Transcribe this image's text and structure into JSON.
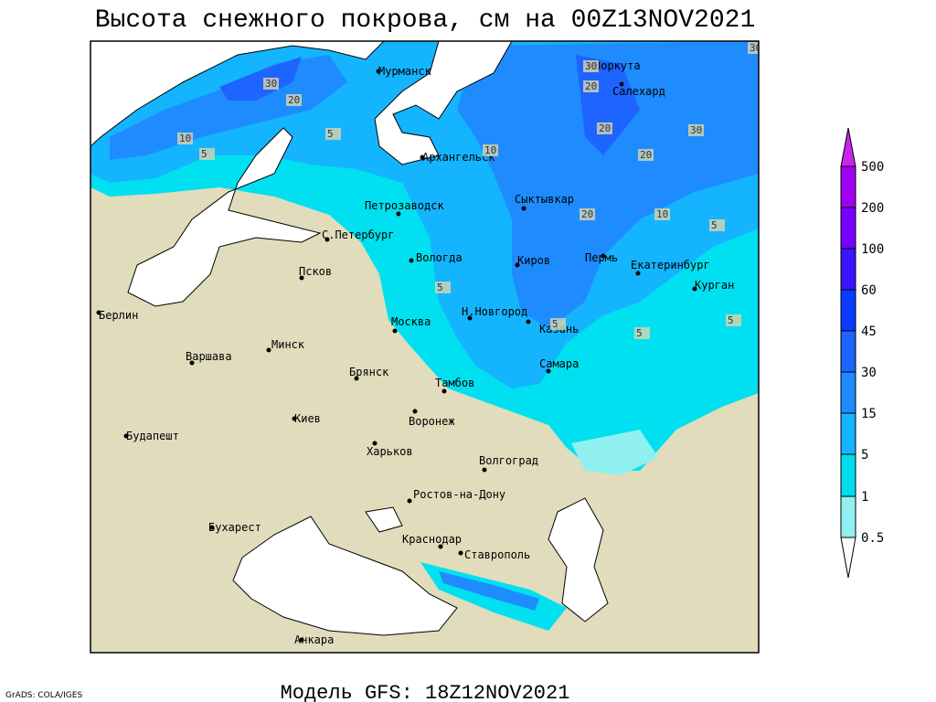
{
  "header": {
    "title": "Высота снежного покрова, см на 00Z13NOV2021"
  },
  "footer": {
    "model": "Модель GFS: 18Z12NOV2021",
    "credit": "GrADS: COLA/IGES"
  },
  "cities": [
    "Мурманск",
    "Воркута",
    "Салехард",
    "Архангельск",
    "Сыктывкар",
    "Петрозаводск",
    "С.Петербург",
    "Вологда",
    "Киров",
    "Пермь",
    "Екатеринбург",
    "Курган",
    "Псков",
    "Берлин",
    "Н.Новгород",
    "Москва",
    "Казань",
    "Минск",
    "Варшава",
    "Самара",
    "Брянск",
    "Тамбов",
    "Киев",
    "Воронеж",
    "Будапешт",
    "Харьков",
    "Волгоград",
    "Ростов-на-Дону",
    "Бухарест",
    "Краснодар",
    "Ставрополь",
    "Анкара"
  ],
  "contour_labels": [
    "30",
    "20",
    "20",
    "10",
    "5",
    "5",
    "30",
    "20",
    "20",
    "30",
    "20",
    "10",
    "10",
    "5",
    "5",
    "5",
    "5",
    "5",
    "30"
  ],
  "legend": {
    "labels": [
      "500",
      "200",
      "100",
      "60",
      "45",
      "30",
      "15",
      "5",
      "1",
      "0.5"
    ]
  }
}
